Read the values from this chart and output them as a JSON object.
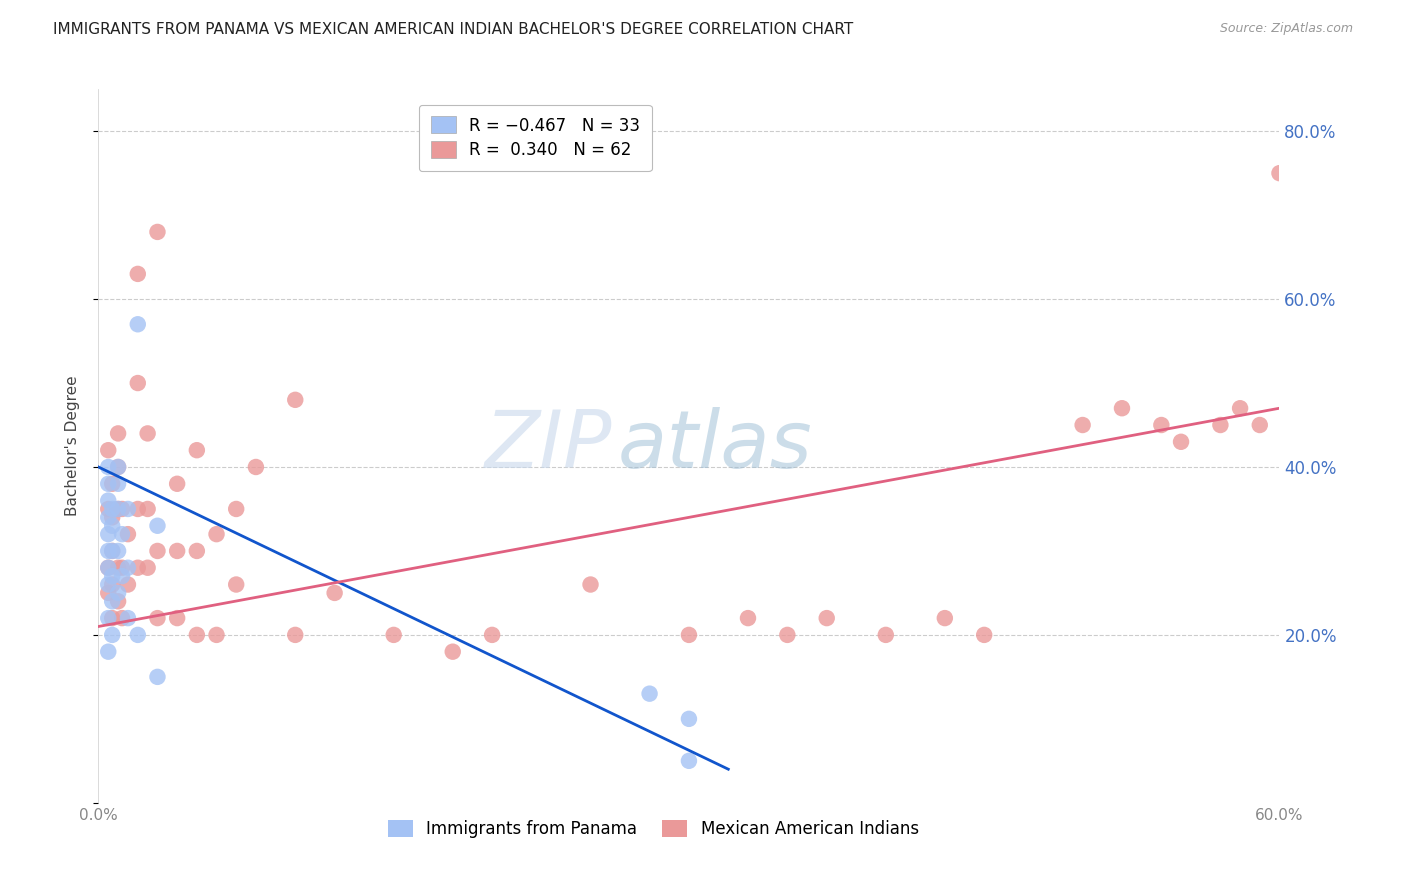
{
  "title": "IMMIGRANTS FROM PANAMA VS MEXICAN AMERICAN INDIAN BACHELOR'S DEGREE CORRELATION CHART",
  "source": "Source: ZipAtlas.com",
  "ylabel_label": "Bachelor's Degree",
  "xlim": [
    0.0,
    0.6
  ],
  "ylim": [
    0.0,
    0.85
  ],
  "blue_color": "#a4c2f4",
  "pink_color": "#ea9999",
  "trendline_blue_color": "#1155cc",
  "trendline_pink_color": "#e06080",
  "watermark_zip": "ZIP",
  "watermark_atlas": "atlas",
  "blue_points_x": [
    0.005,
    0.005,
    0.005,
    0.005,
    0.005,
    0.005,
    0.005,
    0.005,
    0.005,
    0.005,
    0.007,
    0.007,
    0.007,
    0.007,
    0.007,
    0.007,
    0.01,
    0.01,
    0.01,
    0.01,
    0.01,
    0.012,
    0.012,
    0.015,
    0.015,
    0.015,
    0.02,
    0.02,
    0.03,
    0.03,
    0.28,
    0.3,
    0.3
  ],
  "blue_points_y": [
    0.4,
    0.38,
    0.36,
    0.34,
    0.32,
    0.3,
    0.28,
    0.26,
    0.22,
    0.18,
    0.35,
    0.33,
    0.3,
    0.27,
    0.24,
    0.2,
    0.4,
    0.38,
    0.35,
    0.3,
    0.25,
    0.32,
    0.27,
    0.35,
    0.28,
    0.22,
    0.57,
    0.2,
    0.33,
    0.15,
    0.13,
    0.1,
    0.05
  ],
  "pink_points_x": [
    0.005,
    0.005,
    0.005,
    0.005,
    0.007,
    0.007,
    0.007,
    0.007,
    0.007,
    0.01,
    0.01,
    0.01,
    0.01,
    0.01,
    0.012,
    0.012,
    0.012,
    0.015,
    0.015,
    0.02,
    0.02,
    0.02,
    0.02,
    0.025,
    0.025,
    0.025,
    0.03,
    0.03,
    0.03,
    0.04,
    0.04,
    0.04,
    0.05,
    0.05,
    0.05,
    0.06,
    0.06,
    0.07,
    0.07,
    0.08,
    0.1,
    0.1,
    0.12,
    0.15,
    0.18,
    0.2,
    0.25,
    0.3,
    0.33,
    0.35,
    0.37,
    0.4,
    0.43,
    0.45,
    0.5,
    0.52,
    0.54,
    0.55,
    0.57,
    0.58,
    0.59,
    0.6
  ],
  "pink_points_y": [
    0.42,
    0.35,
    0.28,
    0.25,
    0.38,
    0.34,
    0.3,
    0.26,
    0.22,
    0.44,
    0.4,
    0.35,
    0.28,
    0.24,
    0.35,
    0.28,
    0.22,
    0.32,
    0.26,
    0.63,
    0.5,
    0.35,
    0.28,
    0.44,
    0.35,
    0.28,
    0.68,
    0.3,
    0.22,
    0.38,
    0.3,
    0.22,
    0.42,
    0.3,
    0.2,
    0.32,
    0.2,
    0.35,
    0.26,
    0.4,
    0.48,
    0.2,
    0.25,
    0.2,
    0.18,
    0.2,
    0.26,
    0.2,
    0.22,
    0.2,
    0.22,
    0.2,
    0.22,
    0.2,
    0.45,
    0.47,
    0.45,
    0.43,
    0.45,
    0.47,
    0.45,
    0.75
  ],
  "blue_trend_x": [
    0.0,
    0.32
  ],
  "blue_trend_y": [
    0.4,
    0.04
  ],
  "pink_trend_x": [
    0.0,
    0.6
  ],
  "pink_trend_y": [
    0.21,
    0.47
  ],
  "grid_color": "#cccccc",
  "background_color": "#ffffff",
  "title_fontsize": 11,
  "axis_label_color": "#4472c4",
  "tick_color": "#888888"
}
